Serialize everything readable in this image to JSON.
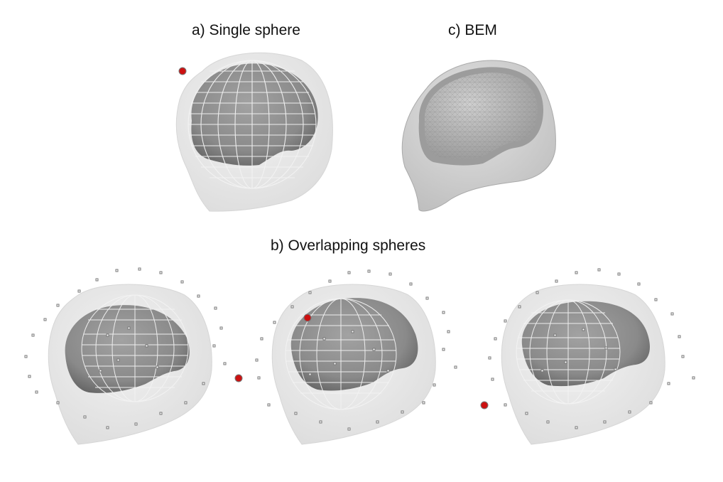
{
  "captions": {
    "single_sphere": "a) Single sphere",
    "bem": "c) BEM",
    "overlapping_spheres": "b) Overlapping spheres"
  },
  "colors": {
    "scalp": "#e4e4e4",
    "scalp_edge": "#d2d2d2",
    "brain": "#8f8f8f",
    "brain_dark": "#6e6e6e",
    "sphere_grid": "#f2f2f2",
    "sensor": "#8a8a8a",
    "highlight_sensor": "#cc1111"
  }
}
